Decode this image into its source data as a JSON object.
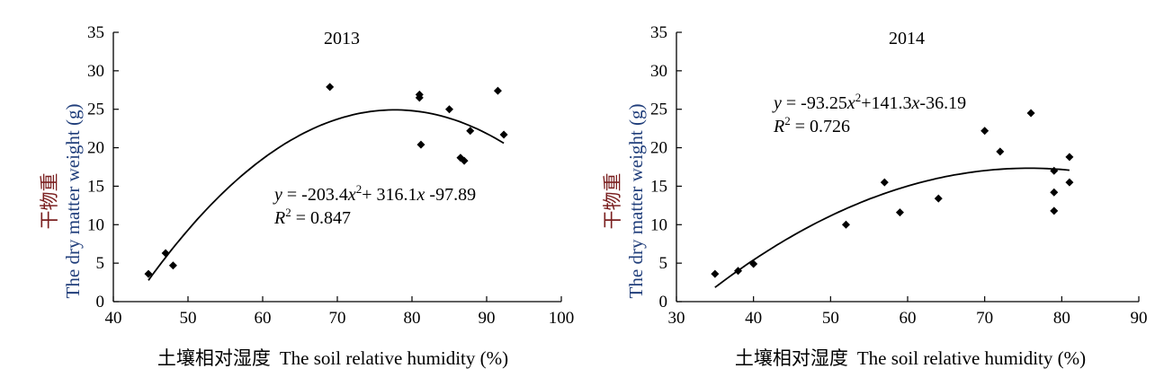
{
  "chart_data": [
    {
      "type": "scatter",
      "title": "2013",
      "ylabel_cn": "干物重",
      "ylabel": "The dry matter weight (g)",
      "xlabel_cn": "土壤相对湿度",
      "xlabel": "The soil relative humidity (%)",
      "xlim": [
        40,
        100
      ],
      "ylim": [
        0,
        35
      ],
      "xticks": [
        "40",
        "50",
        "60",
        "70",
        "80",
        "90",
        "100"
      ],
      "yticks": [
        "0",
        "5",
        "10",
        "15",
        "20",
        "25",
        "30",
        "35"
      ],
      "points": [
        [
          44.7,
          3.6
        ],
        [
          47.0,
          6.3
        ],
        [
          48.0,
          4.7
        ],
        [
          69.0,
          27.9
        ],
        [
          81.0,
          26.9
        ],
        [
          81.0,
          26.5
        ],
        [
          81.2,
          20.4
        ],
        [
          85.0,
          25.0
        ],
        [
          86.5,
          18.7
        ],
        [
          87.0,
          18.3
        ],
        [
          87.8,
          22.2
        ],
        [
          91.5,
          27.4
        ],
        [
          92.3,
          21.7
        ]
      ],
      "fit": {
        "a": -203.4,
        "b": 316.1,
        "c": -97.89,
        "x_range": [
          44.7,
          92.3
        ]
      },
      "equation": {
        "y": "y",
        "eq": " = -203.4",
        "x": "x",
        "sup": "2",
        "rest": "+ 316.1",
        "x2": "x",
        "tail": " -97.89"
      },
      "r2": {
        "r": "R",
        "sup": "2",
        "val": " = 0.847"
      }
    },
    {
      "type": "scatter",
      "title": "2014",
      "ylabel_cn": "干物重",
      "ylabel": "The dry matter weight (g)",
      "xlabel_cn": "土壤相对湿度",
      "xlabel": "The soil relative humidity (%)",
      "xlim": [
        30,
        90
      ],
      "ylim": [
        0,
        35
      ],
      "xticks": [
        "30",
        "40",
        "50",
        "60",
        "70",
        "80",
        "90"
      ],
      "yticks": [
        "0",
        "5",
        "10",
        "15",
        "20",
        "25",
        "30",
        "35"
      ],
      "points": [
        [
          35.0,
          3.6
        ],
        [
          38.0,
          4.0
        ],
        [
          40.0,
          4.9
        ],
        [
          52.0,
          10.0
        ],
        [
          57.0,
          15.5
        ],
        [
          59.0,
          11.6
        ],
        [
          64.0,
          13.4
        ],
        [
          70.0,
          22.2
        ],
        [
          72.0,
          19.5
        ],
        [
          76.0,
          24.5
        ],
        [
          79.0,
          17.0
        ],
        [
          79.0,
          14.2
        ],
        [
          79.0,
          11.8
        ],
        [
          81.0,
          18.8
        ],
        [
          81.0,
          15.5
        ]
      ],
      "fit": {
        "a": -93.25,
        "b": 141.3,
        "c": -36.19,
        "x_range": [
          35,
          81
        ]
      },
      "equation": {
        "y": "y",
        "eq": " = -93.25",
        "x": "x",
        "sup": "2",
        "rest": "+141.3",
        "x2": "x",
        "tail": "-36.19"
      },
      "r2": {
        "r": "R",
        "sup": "2",
        "val": " = 0.726"
      }
    }
  ]
}
